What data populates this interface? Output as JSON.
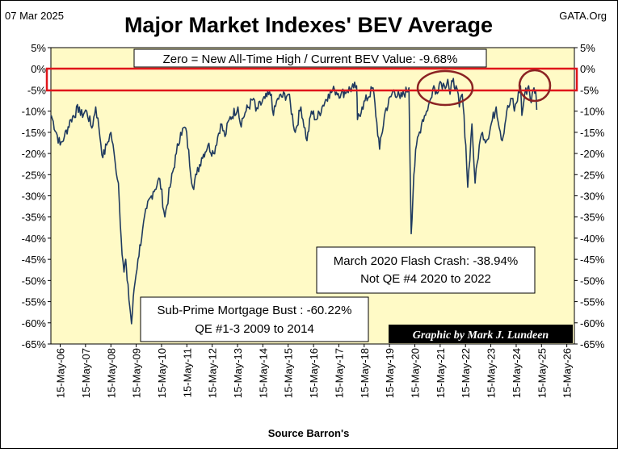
{
  "header": {
    "date": "07 Mar 2025",
    "title": "Major Market Indexes' BEV Average",
    "site": "GATA.Org"
  },
  "annotations": {
    "zero_note": "Zero = New All-Time High / Current BEV Value:  -9.68%",
    "flash_crash_line1": "March 2020 Flash Crash:  -38.94%",
    "flash_crash_line2": "Not QE #4 2020 to 2022",
    "subprime_line1": "Sub-Prime Mortgage Bust : -60.22%",
    "subprime_line2": "QE #1-3 2009 to 2014",
    "credit": "Graphic by Mark J. Lundeen"
  },
  "footer": {
    "source": "Source Barron's"
  },
  "colors": {
    "plot_bg": "#fffac6",
    "line": "#1f3a5f",
    "highlight_box": "#e0161b",
    "circles": "#8b2323",
    "credit_bg": "#000000",
    "credit_text": "#ffffff"
  },
  "chart_data": {
    "type": "line",
    "title": "Major Market Indexes' BEV Average",
    "xlabel": "Source Barron's",
    "ylabel": "",
    "ylim": [
      -65,
      5
    ],
    "y_ticks": [
      "5%",
      "0%",
      "-5%",
      "-10%",
      "-15%",
      "-20%",
      "-25%",
      "-30%",
      "-35%",
      "-40%",
      "-45%",
      "-50%",
      "-55%",
      "-60%",
      "-65%"
    ],
    "x_ticks": [
      "15-May-06",
      "15-May-07",
      "15-May-08",
      "15-May-09",
      "15-May-10",
      "15-May-11",
      "15-May-12",
      "15-May-13",
      "15-May-14",
      "15-May-15",
      "15-May-16",
      "15-May-17",
      "15-May-18",
      "15-May-19",
      "15-May-20",
      "15-May-21",
      "15-May-22",
      "15-May-23",
      "15-May-24",
      "15-May-25",
      "15-May-26"
    ],
    "grid": false,
    "highlight_band": [
      -5,
      0
    ],
    "series": [
      {
        "x": [
          "2006-01-06",
          "2006-05-15",
          "2006-07-15",
          "2006-10-15",
          "2007-02-15",
          "2007-03-05",
          "2007-06-01",
          "2007-08-15",
          "2007-10-10",
          "2007-11-25",
          "2008-01-20",
          "2008-03-15",
          "2008-05-15",
          "2008-07-15",
          "2008-09-01",
          "2008-10-10",
          "2008-11-20",
          "2008-12-15",
          "2009-01-05",
          "2009-03-09",
          "2009-04-15",
          "2009-06-10",
          "2009-08-15",
          "2009-10-15",
          "2010-01-15",
          "2010-04-20",
          "2010-07-02",
          "2010-09-15",
          "2010-12-15",
          "2011-02-15",
          "2011-04-29",
          "2011-08-08",
          "2011-10-03",
          "2011-12-15",
          "2012-03-15",
          "2012-06-04",
          "2012-09-15",
          "2012-11-15",
          "2013-01-15",
          "2013-05-21",
          "2013-06-24",
          "2013-09-15",
          "2013-12-31",
          "2014-02-03",
          "2014-06-15",
          "2014-09-15",
          "2014-10-15",
          "2014-12-15",
          "2015-05-20",
          "2015-08-25",
          "2015-11-15",
          "2016-02-11",
          "2016-04-15",
          "2016-06-27",
          "2016-09-15",
          "2016-12-15",
          "2017-03-15",
          "2017-06-15",
          "2017-09-15",
          "2017-12-15",
          "2018-01-26",
          "2018-02-08",
          "2018-04-15",
          "2018-09-20",
          "2018-12-24",
          "2019-03-15",
          "2019-07-15",
          "2019-10-15",
          "2020-02-19",
          "2020-03-23",
          "2020-04-30",
          "2020-06-08",
          "2020-09-02",
          "2020-10-30",
          "2020-12-31",
          "2021-02-12",
          "2021-03-08",
          "2021-05-15",
          "2021-07-15",
          "2021-09-02",
          "2021-10-04",
          "2021-11-08",
          "2021-12-31",
          "2022-02-15",
          "2022-03-29",
          "2022-05-20",
          "2022-06-16",
          "2022-08-16",
          "2022-09-30",
          "2022-11-30",
          "2023-01-15",
          "2023-03-15",
          "2023-07-31",
          "2023-10-27",
          "2023-12-31",
          "2024-03-28",
          "2024-04-19",
          "2024-07-16",
          "2024-08-05",
          "2024-09-15",
          "2024-11-11",
          "2024-12-18",
          "2025-01-15",
          "2025-02-19",
          "2025-03-07"
        ],
        "values": [
          -11,
          -18,
          -16,
          -12,
          -9,
          -11,
          -10,
          -14,
          -9,
          -14,
          -21,
          -18,
          -15,
          -22,
          -27,
          -40,
          -48,
          -45,
          -50,
          -60.22,
          -52,
          -45,
          -38,
          -33,
          -29,
          -26,
          -35,
          -28,
          -20,
          -15,
          -14,
          -28,
          -25,
          -21,
          -18,
          -20,
          -13,
          -16,
          -12,
          -9,
          -13,
          -10,
          -7,
          -10,
          -7,
          -6,
          -11,
          -7,
          -6,
          -15,
          -9,
          -17,
          -10,
          -12,
          -9,
          -6,
          -5,
          -6,
          -5,
          -4.5,
          -4,
          -12,
          -9,
          -4.5,
          -19,
          -10,
          -5,
          -7,
          -4.5,
          -38.94,
          -25,
          -18,
          -12,
          -10,
          -7,
          -4,
          -6,
          -3,
          -4,
          -2.5,
          -6,
          -3,
          -4,
          -9,
          -6,
          -18,
          -28,
          -13,
          -27,
          -18,
          -15,
          -17,
          -9,
          -17,
          -10,
          -7,
          -10,
          -4,
          -11,
          -6,
          -4,
          -8,
          -5,
          -5,
          -9.68
        ]
      }
    ]
  }
}
